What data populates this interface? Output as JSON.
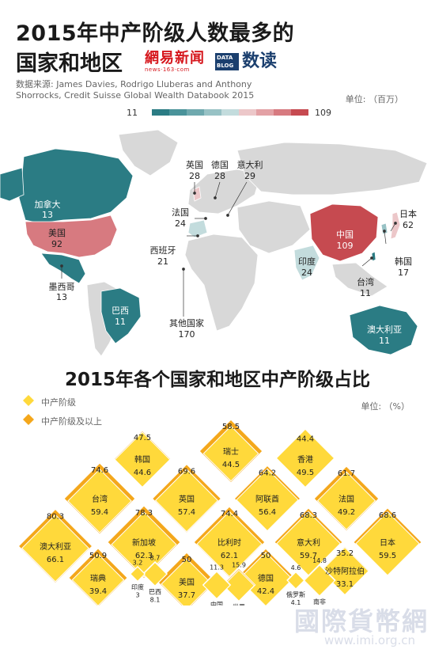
{
  "header": {
    "title_line1": "2015年中产阶级人数最多的",
    "title_line2": "国家和地区",
    "logo_163_big": "網易新闻",
    "logo_163_small": "news·163·com",
    "logo_db_box": "DATA BLOG",
    "logo_db_word": "数读",
    "source_line1": "数据来源: James Davies, Rodrigo Lluberas and Anthony",
    "source_line2": "Shorrocks,  Credit Suisse Global Wealth Databook 2015"
  },
  "colors": {
    "teal_dark": "#2b7c84",
    "pink": "#d77a80",
    "red": "#c64a50",
    "map_grey": "#d8d8d8",
    "yellow": "#ffd93b",
    "orange": "#f4a71b"
  },
  "chart_data": [
    {
      "type": "map",
      "title": "2015年中产阶级人数最多的国家和地区",
      "unit": "单位: （百万）",
      "legend_min": "11",
      "legend_max": "109",
      "regions": [
        {
          "name": "加拿大",
          "value": 13
        },
        {
          "name": "美国",
          "value": 92
        },
        {
          "name": "墨西哥",
          "value": 13
        },
        {
          "name": "巴西",
          "value": 11
        },
        {
          "name": "英国",
          "value": 28
        },
        {
          "name": "德国",
          "value": 28
        },
        {
          "name": "意大利",
          "value": 29
        },
        {
          "name": "法国",
          "value": 24
        },
        {
          "name": "西班牙",
          "value": 21
        },
        {
          "name": "其他国家",
          "value": 170
        },
        {
          "name": "日本",
          "value": 62
        },
        {
          "name": "中国",
          "value": 109
        },
        {
          "name": "韩国",
          "value": 17
        },
        {
          "name": "印度",
          "value": 24
        },
        {
          "name": "台湾",
          "value": 11
        },
        {
          "name": "澳大利亚",
          "value": 11
        }
      ]
    },
    {
      "type": "diamond",
      "title": "2015年各个国家和地区中产阶级占比",
      "unit": "单位: （%）",
      "legend": [
        "中产阶级",
        "中产阶级及以上"
      ],
      "items": [
        {
          "name": "韩国",
          "middle": 44.6,
          "middle_up": 47.5
        },
        {
          "name": "瑞士",
          "middle": 44.5,
          "middle_up": 58.5
        },
        {
          "name": "香港",
          "middle": 49.5,
          "middle_up": 44.4
        },
        {
          "name": "台湾",
          "middle": 59.4,
          "middle_up": 74.6
        },
        {
          "name": "英国",
          "middle": 57.4,
          "middle_up": 69.6
        },
        {
          "name": "阿联酋",
          "middle": 56.4,
          "middle_up": 64.2
        },
        {
          "name": "法国",
          "middle": 49.2,
          "middle_up": 61.7
        },
        {
          "name": "澳大利亚",
          "middle": 66.1,
          "middle_up": 80.3
        },
        {
          "name": "新加坡",
          "middle": 62.3,
          "middle_up": 78.3
        },
        {
          "name": "比利时",
          "middle": 62.1,
          "middle_up": 74.4
        },
        {
          "name": "意大利",
          "middle": 59.7,
          "middle_up": 68.3
        },
        {
          "name": "日本",
          "middle": 59.5,
          "middle_up": 68.6
        },
        {
          "name": "瑞典",
          "middle": 39.4,
          "middle_up": 50.9
        },
        {
          "name": "美国",
          "middle": 37.7,
          "middle_up": 50
        },
        {
          "name": "德国",
          "middle": 42.4,
          "middle_up": 50
        },
        {
          "name": "印度",
          "middle": 3,
          "middle_up": 3.2
        },
        {
          "name": "巴西",
          "middle": 8.1,
          "middle_up": 8.7
        },
        {
          "name": "中国",
          "middle": 10.7,
          "middle_up": 11.3
        },
        {
          "name": "世界",
          "middle": 13.9,
          "middle_up": 15.9
        },
        {
          "name": "俄罗斯",
          "middle": 4.1,
          "middle_up": 4.6
        },
        {
          "name": "南非",
          "middle": 13.7,
          "middle_up": 14.8
        },
        {
          "name": "沙特阿拉伯",
          "middle": 33.1,
          "middle_up": 35.2
        }
      ]
    }
  ],
  "watermark": {
    "line1": "國際貨幣網",
    "line2": "www.imi.org.cn"
  }
}
